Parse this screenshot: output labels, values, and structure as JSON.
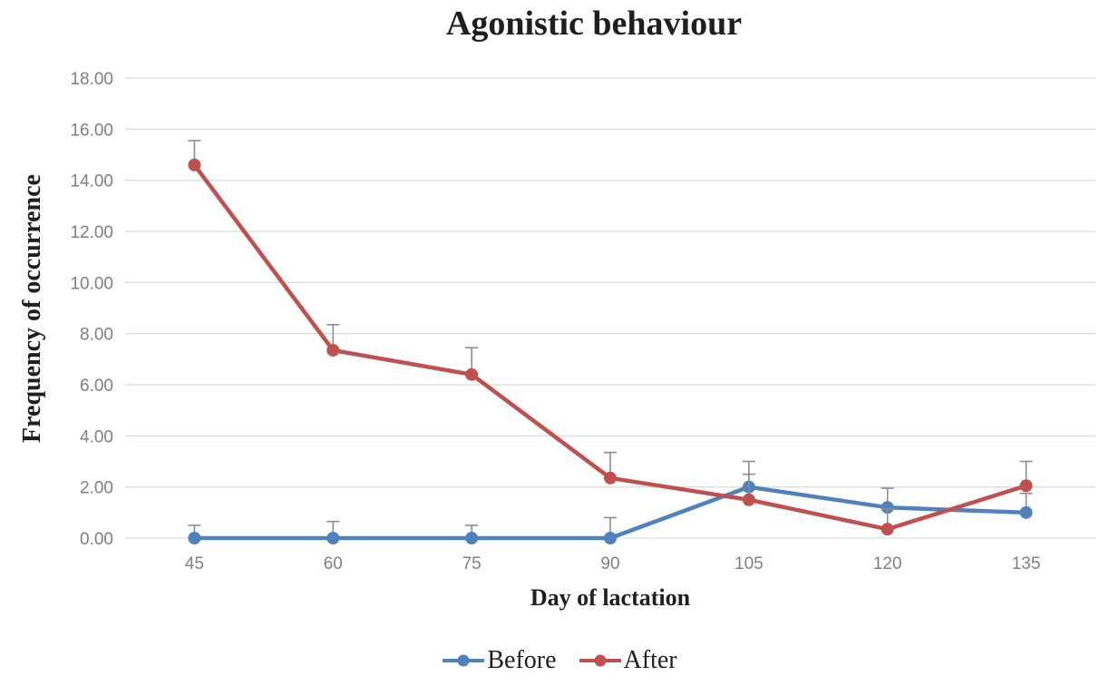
{
  "chart_data": {
    "type": "line",
    "title": "Agonistic behaviour",
    "xlabel": "Day of lactation",
    "ylabel": "Frequency of occurrence",
    "categories": [
      "45",
      "60",
      "75",
      "90",
      "105",
      "120",
      "135"
    ],
    "ylim": [
      0,
      18
    ],
    "yticks": [
      0,
      2,
      4,
      6,
      8,
      10,
      12,
      14,
      16,
      18
    ],
    "ytick_labels": [
      "0.00",
      "2.00",
      "4.00",
      "6.00",
      "8.00",
      "10.00",
      "12.00",
      "14.00",
      "16.00",
      "18.00"
    ],
    "grid": true,
    "legend_position": "bottom",
    "error_bars": "plus-direction-only",
    "series": [
      {
        "name": "Before",
        "color": "#4F81BD",
        "values": [
          0.0,
          0.0,
          0.0,
          0.0,
          2.0,
          1.2,
          1.0
        ],
        "errors_plus": [
          0.5,
          0.65,
          0.5,
          0.8,
          1.0,
          0.75,
          0.75
        ]
      },
      {
        "name": "After",
        "color": "#C0504D",
        "values": [
          14.6,
          7.35,
          6.4,
          2.35,
          1.5,
          0.35,
          2.05
        ],
        "errors_plus": [
          0.95,
          1.0,
          1.05,
          1.0,
          1.0,
          0.8,
          0.95
        ]
      }
    ],
    "colors": {
      "gridline": "#DCDCDC",
      "tick_text": "#7F7F7F",
      "error_bar": "#8C8C8C",
      "title_text": "#1F1F1F"
    }
  }
}
